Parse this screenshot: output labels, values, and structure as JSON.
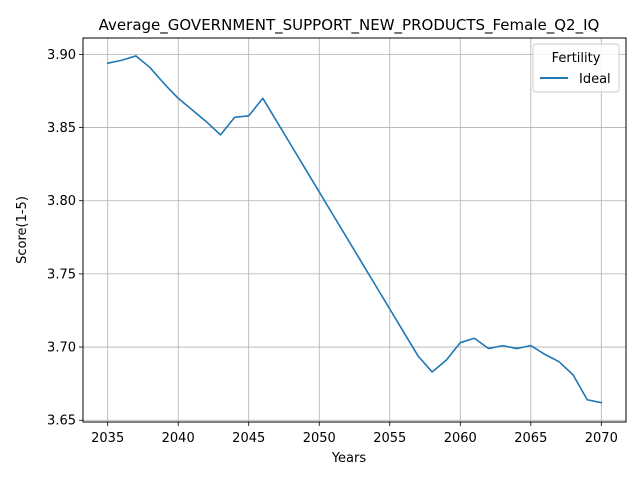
{
  "chart_data": {
    "type": "line",
    "title": "Average_GOVERNMENT_SUPPORT_NEW_PRODUCTS_Female_Q2_IQ",
    "xlabel": "Years",
    "ylabel": "Score(1-5)",
    "xlim": [
      2033.25,
      2071.75
    ],
    "ylim": [
      3.6488,
      3.9112
    ],
    "xticks": [
      2035,
      2040,
      2045,
      2050,
      2055,
      2060,
      2065,
      2070
    ],
    "yticks": [
      3.65,
      3.7,
      3.75,
      3.8,
      3.85,
      3.9
    ],
    "ytick_labels": [
      "3.65",
      "3.70",
      "3.75",
      "3.80",
      "3.85",
      "3.90"
    ],
    "grid": true,
    "legend": {
      "title": "Fertility",
      "placement": "top-right"
    },
    "series": [
      {
        "name": "Ideal",
        "color": "#1f77b4",
        "x": [
          2035,
          2036,
          2037,
          2038,
          2039,
          2040,
          2041,
          2042,
          2043,
          2044,
          2045,
          2046,
          2047,
          2048,
          2049,
          2050,
          2051,
          2052,
          2053,
          2054,
          2055,
          2056,
          2057,
          2058,
          2059,
          2060,
          2061,
          2062,
          2063,
          2064,
          2065,
          2066,
          2067,
          2068,
          2069,
          2070
        ],
        "y": [
          3.894,
          3.896,
          3.899,
          3.891,
          3.88,
          3.87,
          3.862,
          3.854,
          3.845,
          3.857,
          3.858,
          3.87,
          3.854,
          3.838,
          3.822,
          3.806,
          3.79,
          3.774,
          3.758,
          3.742,
          3.726,
          3.71,
          3.694,
          3.683,
          3.691,
          3.703,
          3.706,
          3.699,
          3.701,
          3.699,
          3.701,
          3.695,
          3.69,
          3.681,
          3.664,
          3.662
        ]
      }
    ]
  }
}
